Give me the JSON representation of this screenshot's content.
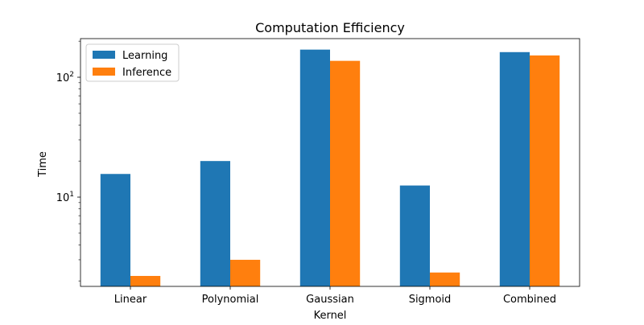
{
  "chart_data": {
    "type": "bar",
    "title": "Computation Efficiency",
    "xlabel": "Kernel",
    "ylabel": "Time",
    "yscale": "log",
    "ylim": [
      1.8,
      210
    ],
    "grid": false,
    "legend_position": "top-left",
    "categories": [
      "Linear",
      "Polynomial",
      "Gaussian",
      "Sigmoid",
      "Combined"
    ],
    "series": [
      {
        "name": "Learning",
        "color": "#1f77b4",
        "values": [
          15.6,
          20.0,
          170,
          12.5,
          162
        ]
      },
      {
        "name": "Inference",
        "color": "#ff7f0e",
        "values": [
          2.2,
          3.0,
          137,
          2.35,
          152
        ]
      }
    ],
    "y_ticks": [
      {
        "value": 10,
        "base": "10",
        "exp": "1"
      },
      {
        "value": 100,
        "base": "10",
        "exp": "2"
      }
    ],
    "y_minor_ticks": [
      2,
      3,
      4,
      5,
      6,
      7,
      8,
      9,
      20,
      30,
      40,
      50,
      60,
      70,
      80,
      90,
      200
    ]
  }
}
